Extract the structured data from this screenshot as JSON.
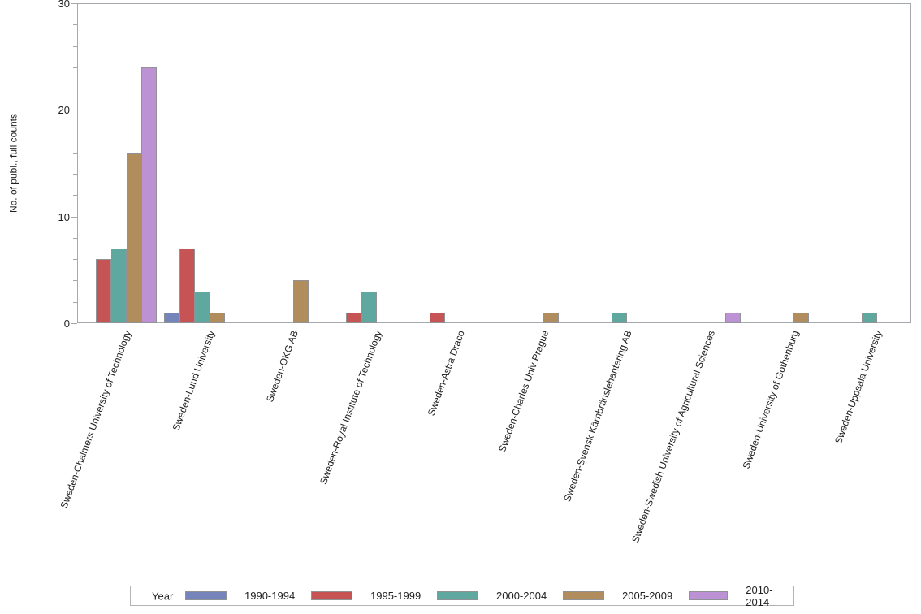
{
  "chart_data": {
    "type": "bar",
    "title": "",
    "xlabel": "",
    "ylabel": "No. of publ., full counts",
    "ylim": [
      0,
      30
    ],
    "y_major_ticks": [
      0,
      10,
      20,
      30
    ],
    "y_minor_step": 2,
    "grid": false,
    "legend_position": "bottom",
    "legend_title": "Year",
    "categories": [
      "Sweden-Chalmers University of Technology",
      "Sweden-Lund University",
      "Sweden-OKG AB",
      "Sweden-Royal Institute of Technology",
      "Sweden-Astra Draco",
      "Sweden-Charles Univ Prague",
      "Sweden-Svensk Kärnbränslehantering AB",
      "Sweden-Swedish University of Agricultural Sciences",
      "Sweden-University of Gothenburg",
      "Sweden-Uppsala University"
    ],
    "series": [
      {
        "name": "1990-1994",
        "color": "#7585bc",
        "values": [
          0,
          1,
          0,
          0,
          0,
          0,
          0,
          0,
          0,
          0
        ]
      },
      {
        "name": "1995-1999",
        "color": "#c65454",
        "values": [
          6,
          7,
          0,
          1,
          1,
          0,
          0,
          0,
          0,
          0
        ]
      },
      {
        "name": "2000-2004",
        "color": "#5fa8a0",
        "values": [
          7,
          3,
          0,
          3,
          0,
          0,
          1,
          0,
          0,
          1
        ]
      },
      {
        "name": "2005-2009",
        "color": "#b18c5c",
        "values": [
          16,
          1,
          4,
          0,
          0,
          1,
          0,
          0,
          1,
          0
        ]
      },
      {
        "name": "2010-2014",
        "color": "#bc92d4",
        "values": [
          24,
          0,
          0,
          0,
          0,
          0,
          0,
          1,
          0,
          0
        ]
      }
    ],
    "colors": {
      "bar_border": "#8f9396",
      "axis": "#a5a9ad",
      "legend_border": "#b4b4b4",
      "text": "#1f1f1f"
    }
  }
}
